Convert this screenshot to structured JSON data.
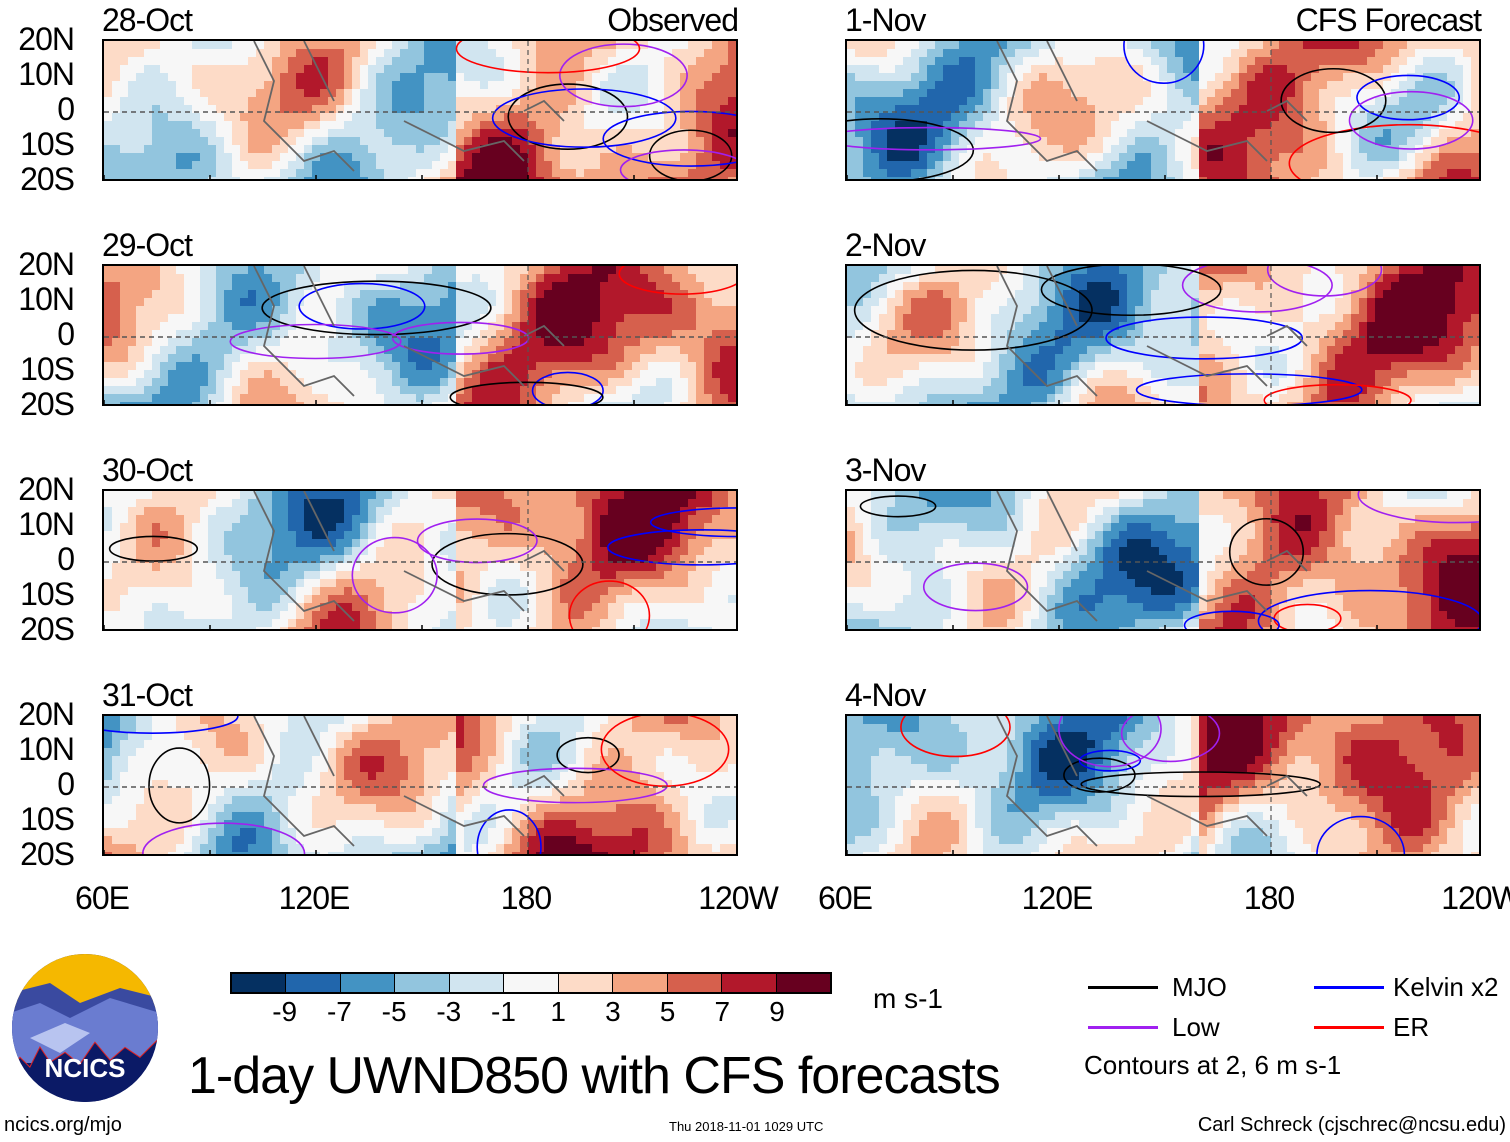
{
  "title": "1-day UWND850 with CFS forecasts",
  "observed_label": "Observed",
  "forecast_label": "CFS Forecast",
  "lat_labels": [
    "20N",
    "10N",
    "0",
    "10S",
    "20S"
  ],
  "lon_labels": [
    "60E",
    "120E",
    "180",
    "120W"
  ],
  "panels_observed": [
    "28-Oct",
    "29-Oct",
    "30-Oct",
    "31-Oct"
  ],
  "panels_forecast": [
    "1-Nov",
    "2-Nov",
    "3-Nov",
    "4-Nov"
  ],
  "colorbar": {
    "colors": [
      "#053061",
      "#2166ac",
      "#4393c3",
      "#92c5de",
      "#d1e5f0",
      "#f7f7f7",
      "#fddbc7",
      "#f4a582",
      "#d6604d",
      "#b2182b",
      "#67001f"
    ],
    "labels": [
      "-9",
      "-7",
      "-5",
      "-3",
      "-1",
      "1",
      "3",
      "5",
      "7",
      "9"
    ],
    "units": "m s-1"
  },
  "legend": [
    {
      "label": "MJO",
      "color": "#000000"
    },
    {
      "label": "Kelvin x2",
      "color": "#0000ff"
    },
    {
      "label": "Low",
      "color": "#a020f0"
    },
    {
      "label": "ER",
      "color": "#ff0000"
    }
  ],
  "contour_note": "Contours at 2, 6 m s-1",
  "logo_text": "NCICS",
  "footer": {
    "url": "ncics.org/mjo",
    "timestamp": "Thu 2018-11-01 1029 UTC",
    "author": "Carl Schreck (cjschrec@ncsu.edu)"
  }
}
